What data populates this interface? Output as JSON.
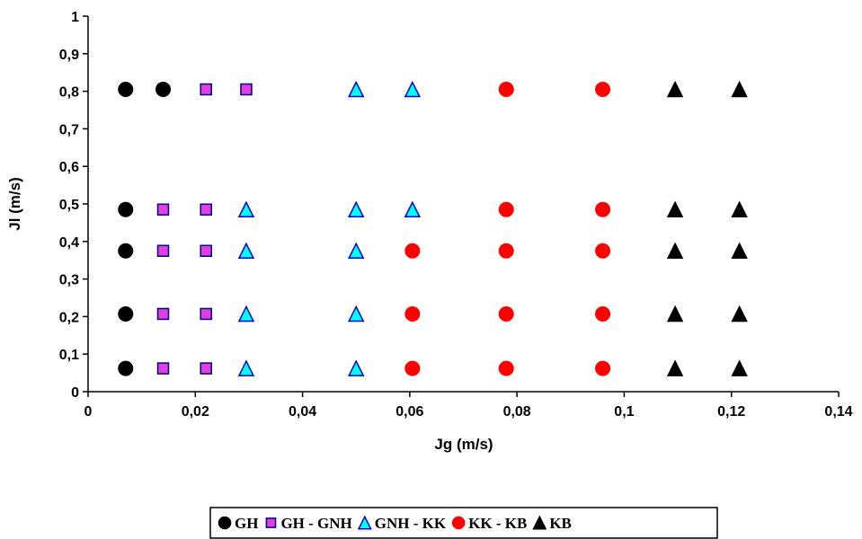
{
  "chart_data": {
    "type": "scatter",
    "title": "",
    "xlabel": "Jg  (m/s)",
    "ylabel": "Jl  (m/s)",
    "xlim": [
      0,
      0.14
    ],
    "ylim": [
      0,
      1
    ],
    "x_ticks": [
      "0",
      "0,02",
      "0,04",
      "0,06",
      "0,08",
      "0,1",
      "0,12",
      "0,14"
    ],
    "y_ticks": [
      "0",
      "0,1",
      "0,2",
      "0,3",
      "0,4",
      "0,5",
      "0,6",
      "0,7",
      "0,8",
      "0,9",
      "1"
    ],
    "x_tick_values": [
      0,
      0.02,
      0.04,
      0.06,
      0.08,
      0.1,
      0.12,
      0.14
    ],
    "y_tick_values": [
      0,
      0.1,
      0.2,
      0.3,
      0.4,
      0.5,
      0.6,
      0.7,
      0.8,
      0.9,
      1
    ],
    "grid": false,
    "legend_position": "bottom",
    "series": [
      {
        "name": "GH",
        "marker": "circle",
        "fill": "#000000",
        "stroke": "#000000",
        "points": [
          [
            0.007,
            0.805
          ],
          [
            0.014,
            0.805
          ],
          [
            0.007,
            0.485
          ],
          [
            0.007,
            0.375
          ],
          [
            0.007,
            0.207
          ],
          [
            0.007,
            0.062
          ]
        ]
      },
      {
        "name": "GH - GNH",
        "marker": "square",
        "fill": "#e040e0",
        "stroke": "#000080",
        "points": [
          [
            0.022,
            0.805
          ],
          [
            0.0295,
            0.805
          ],
          [
            0.014,
            0.485
          ],
          [
            0.022,
            0.485
          ],
          [
            0.014,
            0.375
          ],
          [
            0.022,
            0.375
          ],
          [
            0.014,
            0.207
          ],
          [
            0.022,
            0.207
          ],
          [
            0.014,
            0.062
          ],
          [
            0.022,
            0.062
          ]
        ]
      },
      {
        "name": "GNH - KK",
        "marker": "triangle",
        "fill": "#00ffff",
        "stroke": "#0000cc",
        "points": [
          [
            0.05,
            0.805
          ],
          [
            0.0605,
            0.805
          ],
          [
            0.0295,
            0.485
          ],
          [
            0.05,
            0.485
          ],
          [
            0.0605,
            0.485
          ],
          [
            0.0295,
            0.375
          ],
          [
            0.05,
            0.375
          ],
          [
            0.0295,
            0.207
          ],
          [
            0.05,
            0.207
          ],
          [
            0.0295,
            0.062
          ],
          [
            0.05,
            0.062
          ]
        ]
      },
      {
        "name": "KK - KB",
        "marker": "circle",
        "fill": "#ff0000",
        "stroke": "#ff0000",
        "points": [
          [
            0.078,
            0.805
          ],
          [
            0.096,
            0.805
          ],
          [
            0.078,
            0.485
          ],
          [
            0.096,
            0.485
          ],
          [
            0.0605,
            0.375
          ],
          [
            0.078,
            0.375
          ],
          [
            0.096,
            0.375
          ],
          [
            0.0605,
            0.207
          ],
          [
            0.078,
            0.207
          ],
          [
            0.096,
            0.207
          ],
          [
            0.0605,
            0.062
          ],
          [
            0.078,
            0.062
          ],
          [
            0.096,
            0.062
          ]
        ]
      },
      {
        "name": "KB",
        "marker": "triangle",
        "fill": "#000000",
        "stroke": "#000000",
        "points": [
          [
            0.1095,
            0.805
          ],
          [
            0.1215,
            0.805
          ],
          [
            0.1095,
            0.485
          ],
          [
            0.1215,
            0.485
          ],
          [
            0.1095,
            0.375
          ],
          [
            0.1215,
            0.375
          ],
          [
            0.1095,
            0.207
          ],
          [
            0.1215,
            0.207
          ],
          [
            0.1095,
            0.062
          ],
          [
            0.1215,
            0.062
          ]
        ]
      }
    ]
  }
}
